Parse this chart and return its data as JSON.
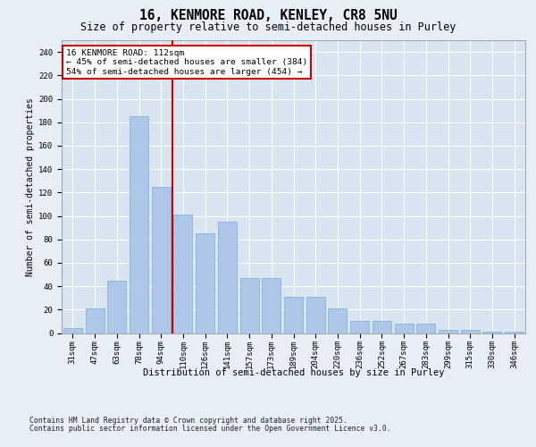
{
  "title_line1": "16, KENMORE ROAD, KENLEY, CR8 5NU",
  "title_line2": "Size of property relative to semi-detached houses in Purley",
  "xlabel": "Distribution of semi-detached houses by size in Purley",
  "ylabel": "Number of semi-detached properties",
  "categories": [
    "31sqm",
    "47sqm",
    "63sqm",
    "78sqm",
    "94sqm",
    "110sqm",
    "126sqm",
    "141sqm",
    "157sqm",
    "173sqm",
    "189sqm",
    "204sqm",
    "220sqm",
    "236sqm",
    "252sqm",
    "267sqm",
    "283sqm",
    "299sqm",
    "315sqm",
    "330sqm",
    "346sqm"
  ],
  "values": [
    4,
    21,
    45,
    185,
    125,
    101,
    85,
    95,
    47,
    47,
    31,
    31,
    21,
    10,
    10,
    8,
    8,
    3,
    3,
    1,
    1
  ],
  "bar_color": "#aec6e8",
  "bar_edge_color": "#7aafd4",
  "vline_x_index": 5,
  "vline_color": "#cc0000",
  "annotation_line1": "16 KENMORE ROAD: 112sqm",
  "annotation_line2": "← 45% of semi-detached houses are smaller (384)",
  "annotation_line3": "54% of semi-detached houses are larger (454) →",
  "annotation_box_color": "#cc0000",
  "ylim": [
    0,
    250
  ],
  "yticks": [
    0,
    20,
    40,
    60,
    80,
    100,
    120,
    140,
    160,
    180,
    200,
    220,
    240
  ],
  "background_color": "#e8eef5",
  "plot_bg_color": "#d8e4f0",
  "footer_line1": "Contains HM Land Registry data © Crown copyright and database right 2025.",
  "footer_line2": "Contains public sector information licensed under the Open Government Licence v3.0.",
  "title_fontsize": 10.5,
  "subtitle_fontsize": 8.5,
  "axis_label_fontsize": 7.5,
  "tick_fontsize": 6.5,
  "annotation_fontsize": 6.8,
  "footer_fontsize": 5.8,
  "ylabel_fontsize": 7.0
}
